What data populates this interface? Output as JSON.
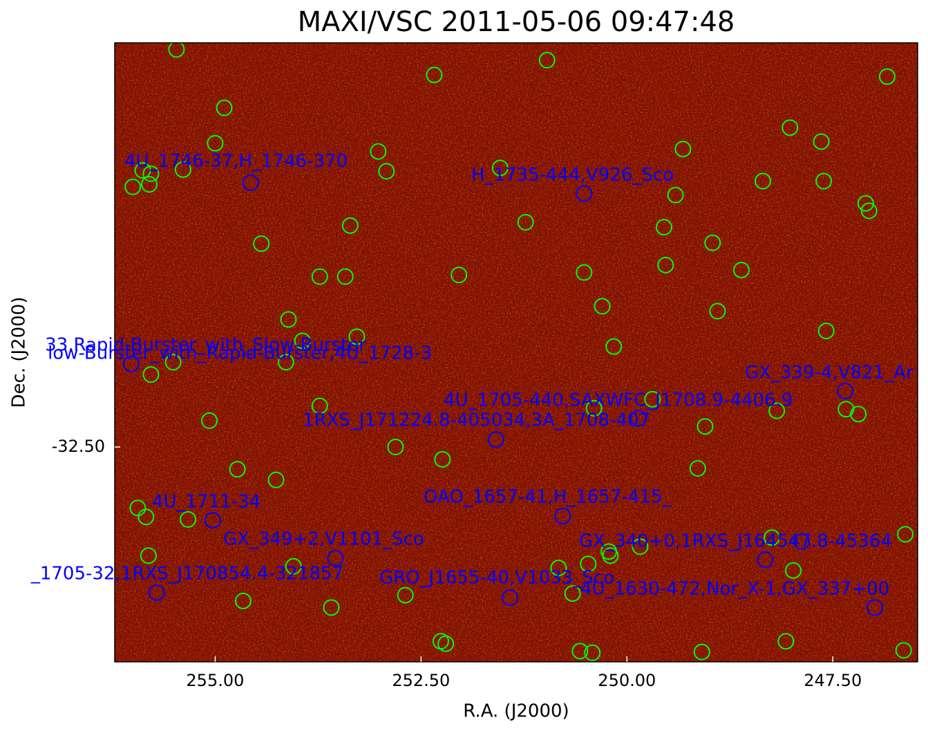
{
  "chart_data": {
    "type": "scatter",
    "title": "MAXI/VSC 2011-05-06 09:47:48",
    "xlabel": "R.A. (J2000)",
    "ylabel": "Dec. (J2000)",
    "xlim": [
      256.22,
      246.47
    ],
    "ylim": [
      -35.11,
      -27.59
    ],
    "xticks": [
      {
        "value": 255,
        "label": "255.00"
      },
      {
        "value": 252.5,
        "label": "252.50"
      },
      {
        "value": 250,
        "label": "250.00"
      },
      {
        "value": 247.5,
        "label": "247.50"
      }
    ],
    "yticks": [
      {
        "value": -32.5,
        "label": "-32.50"
      }
    ],
    "background": "#7a1006",
    "series": [
      {
        "color": "#00ff00",
        "x": [
          255.47,
          254.89,
          255.0,
          255.39,
          255.88,
          255.78,
          256.0,
          255.8,
          254.44,
          252.34,
          250.97,
          246.84,
          253.02,
          252.92,
          251.54,
          249.32,
          248.02,
          247.64,
          248.35,
          247.61,
          249.41,
          247.1,
          247.06,
          253.36,
          251.23,
          249.55,
          248.96,
          253.73,
          253.42,
          252.04,
          250.52,
          249.53,
          248.61,
          250.3,
          248.9,
          254.11,
          253.94,
          253.28,
          250.16,
          247.58,
          255.51,
          255.78,
          254.14,
          253.73,
          255.07,
          252.81,
          252.24,
          254.73,
          254.26,
          249.69,
          250.4,
          249.05,
          248.18,
          247.34,
          247.19,
          249.14,
          255.94,
          255.84,
          255.33,
          255.81,
          254.05,
          254.66,
          253.59,
          252.69,
          250.83,
          250.47,
          250.22,
          250.2,
          249.84,
          250.66,
          248.24,
          247.98,
          246.62,
          252.26,
          252.2,
          250.57,
          250.42,
          249.09,
          248.07,
          246.64
        ],
        "y": [
          -27.67,
          -28.38,
          -28.81,
          -29.13,
          -29.14,
          -29.18,
          -29.34,
          -29.31,
          -30.03,
          -27.98,
          -27.8,
          -28.0,
          -28.91,
          -29.15,
          -29.11,
          -28.88,
          -28.62,
          -28.79,
          -29.27,
          -29.27,
          -29.44,
          -29.54,
          -29.63,
          -29.81,
          -29.77,
          -29.83,
          -30.02,
          -30.43,
          -30.43,
          -30.41,
          -30.38,
          -30.29,
          -30.35,
          -30.79,
          -30.85,
          -30.95,
          -31.21,
          -31.16,
          -31.28,
          -31.09,
          -31.47,
          -31.62,
          -31.47,
          -32.0,
          -32.18,
          -32.5,
          -32.65,
          -32.77,
          -32.9,
          -31.92,
          -32.03,
          -32.25,
          -32.06,
          -32.04,
          -32.1,
          -32.76,
          -33.24,
          -33.35,
          -33.38,
          -33.82,
          -33.95,
          -34.37,
          -34.45,
          -34.3,
          -33.97,
          -33.92,
          -33.77,
          -33.82,
          -33.71,
          -34.28,
          -33.6,
          -34.0,
          -33.56,
          -34.86,
          -34.89,
          -34.98,
          -35.0,
          -34.99,
          -34.86,
          -34.97
        ]
      },
      {
        "color": "#0000ff",
        "x": [
          256.02,
          254.57,
          250.52,
          251.59,
          249.86,
          255.03,
          253.54,
          255.71,
          250.78,
          251.42,
          248.32,
          247.88,
          246.99,
          247.35
        ],
        "y": [
          -31.49,
          -29.29,
          -29.42,
          -32.41,
          -32.15,
          -33.39,
          -33.85,
          -34.27,
          -33.34,
          -34.33,
          -33.87,
          -33.65,
          -34.45,
          -31.82
        ]
      }
    ],
    "annotations": [
      "4U_1746-37,H_1746-370",
      "H_1735-444,V926_Sco",
      "33,Rapid-Burster_with_Slow-Burster",
      "low-Burster_with_Rapid-Burster,4U_1728-3",
      "GX_339-4,V821_Ar",
      "4U_1705-440,SAXWFC_J1708.9-4406.9",
      "1RXS_J171224.8-405034,3A_1708-407",
      "4U_1711-34",
      "OAO_1657-41,H_1657-415_",
      "GX_349+2,V1101_Sco",
      "GX_340+0,1RXS_J164547.8-45364",
      "_1705-32,1RXS_J170854.4-321857",
      "GRO_J1655-40,V1033_Sco",
      "4U_1630-472,Nor_X-1,GX_337+00"
    ],
    "annotation_color": "#0000ff"
  }
}
